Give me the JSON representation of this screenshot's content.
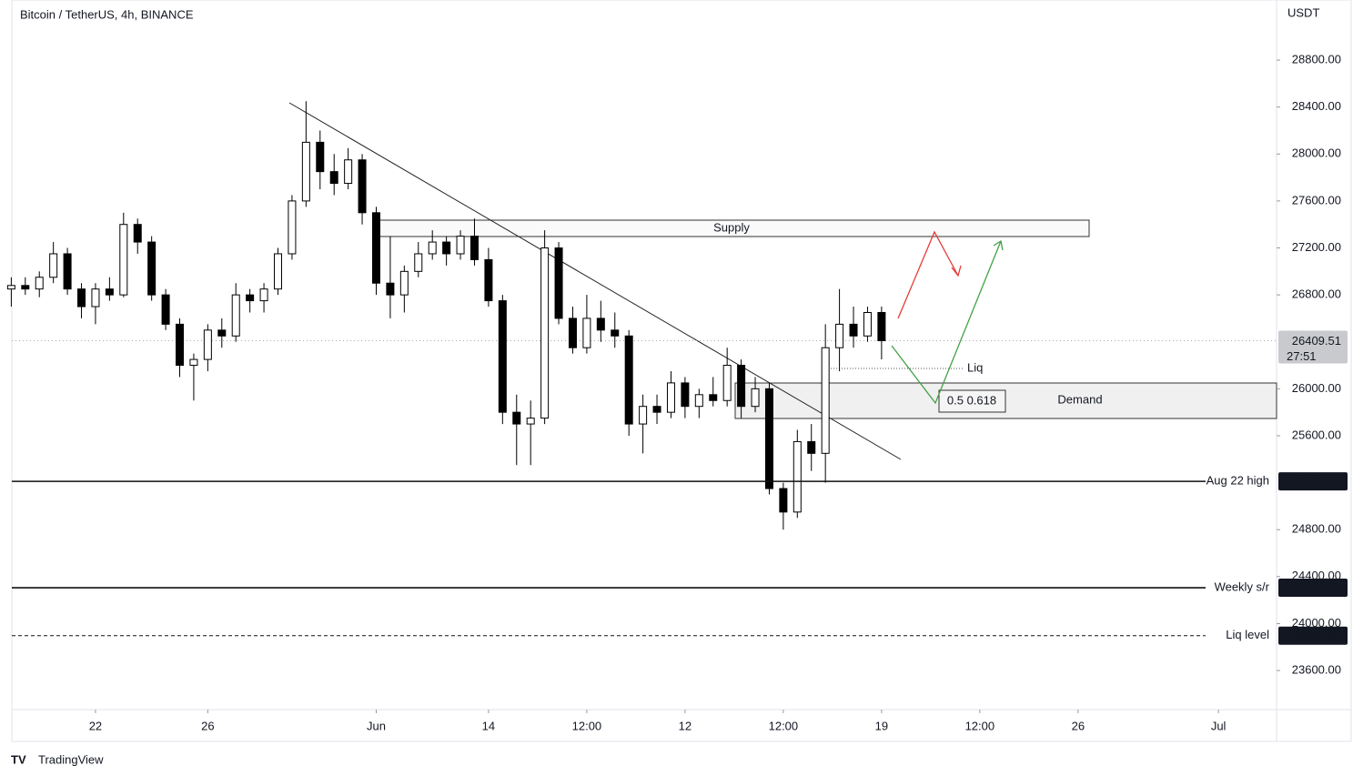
{
  "chart_data": {
    "type": "candlestick",
    "title": "Bitcoin / TetherUS, 4h, BINANCE",
    "y_unit": "USDT",
    "x": [
      -3,
      -2.5,
      -2,
      -1.5,
      -1,
      -0.5,
      0,
      0.5,
      1,
      1.5,
      2,
      2.5,
      3,
      3.5,
      4,
      4.5,
      5,
      5.5,
      6,
      6.5,
      7,
      7.5,
      8,
      8.5,
      9,
      9.5,
      10,
      10.5,
      11,
      11.5,
      12,
      12.5,
      13,
      13.5,
      14,
      14.5,
      15,
      15.5,
      16,
      16.5,
      17,
      17.5,
      18,
      18.5,
      19,
      19.5,
      20,
      20.5,
      21,
      21.5,
      22,
      22.5,
      23,
      23.5,
      24,
      24.5,
      25,
      25.5,
      26,
      26.5,
      27,
      27.5,
      28
    ],
    "open": [
      26850,
      26880,
      26850,
      26950,
      27150,
      26850,
      26700,
      26850,
      26800,
      27400,
      27250,
      26800,
      26550,
      26200,
      26250,
      26500,
      26450,
      26800,
      26750,
      26850,
      27150,
      27600,
      28100,
      27850,
      27750,
      27950,
      27500,
      26900,
      26800,
      27000,
      27150,
      27250,
      27150,
      27300,
      27100,
      26750,
      25800,
      25700,
      25750,
      27200,
      26600,
      26350,
      26600,
      26500,
      26450,
      25700,
      25850,
      25800,
      26050,
      25850,
      25950,
      25900,
      26200,
      25850,
      26000,
      25150,
      24950,
      25550,
      25450,
      26350,
      26550,
      26450,
      26650
    ],
    "high": [
      26950,
      26950,
      27000,
      27250,
      27200,
      26900,
      26900,
      26950,
      27500,
      27450,
      27300,
      26850,
      26600,
      26300,
      26550,
      26600,
      26900,
      26850,
      26900,
      27200,
      27650,
      28450,
      28200,
      28000,
      28050,
      28000,
      27550,
      27300,
      27050,
      27250,
      27350,
      27300,
      27350,
      27450,
      27200,
      26800,
      25950,
      25900,
      27350,
      27250,
      26700,
      26800,
      26750,
      26650,
      26500,
      25950,
      25950,
      26150,
      26100,
      26000,
      26100,
      26350,
      26250,
      26100,
      26050,
      25200,
      25650,
      25700,
      26550,
      26850,
      26700,
      26700,
      26700
    ],
    "low": [
      26700,
      26800,
      26780,
      26900,
      26800,
      26600,
      26550,
      26750,
      26780,
      27150,
      26750,
      26500,
      26100,
      25900,
      26150,
      26350,
      26400,
      26650,
      26650,
      26800,
      27100,
      27550,
      27700,
      27650,
      27700,
      27400,
      26800,
      26600,
      26650,
      26950,
      27100,
      27050,
      27100,
      27050,
      26700,
      25700,
      25350,
      25350,
      25700,
      26550,
      26300,
      26300,
      26400,
      26350,
      25600,
      25450,
      25700,
      25750,
      25750,
      25750,
      25850,
      25850,
      25750,
      25800,
      25100,
      24800,
      24900,
      25300,
      25200,
      26150,
      26350,
      26400,
      26250
    ],
    "close": [
      26880,
      26850,
      26950,
      27150,
      26850,
      26700,
      26850,
      26800,
      27400,
      27250,
      26800,
      26550,
      26200,
      26250,
      26500,
      26450,
      26800,
      26750,
      26850,
      27150,
      27600,
      28100,
      27850,
      27750,
      27950,
      27500,
      26900,
      26800,
      27000,
      27150,
      27250,
      27150,
      27300,
      27100,
      26750,
      25800,
      25700,
      25750,
      27200,
      26600,
      26350,
      26600,
      26500,
      26450,
      25700,
      25850,
      25800,
      26050,
      25850,
      25950,
      25900,
      26200,
      25850,
      26000,
      25150,
      24950,
      25550,
      25450,
      26350,
      26550,
      26450,
      26650,
      26409.51
    ],
    "xlim": [
      -2.98,
      42.07
    ],
    "xticks": [
      {
        "value": 0,
        "label": "22"
      },
      {
        "value": 4,
        "label": "26"
      },
      {
        "value": 10,
        "label": "Jun"
      },
      14,
      {
        "value": 17.5,
        "label": "12:00"
      },
      {
        "value": 21,
        "label": "12"
      },
      {
        "value": 24.5,
        "label": "12:00"
      },
      {
        "value": 28,
        "label": "19"
      },
      {
        "value": 31.5,
        "label": "12:00"
      },
      {
        "value": 35,
        "label": "26"
      },
      {
        "value": 40,
        "label": "Jul"
      }
    ],
    "ylim": [
      23267,
      29312
    ],
    "yticks": [
      {
        "value": 23600,
        "label": "23600.00"
      },
      {
        "value": 24000,
        "label": "24000.00"
      },
      {
        "value": 24400,
        "label": "24400.00"
      },
      {
        "value": 24800,
        "label": "24800.00"
      },
      {
        "value": 25600,
        "label": "25600.00"
      },
      {
        "value": 26000,
        "label": "26000.00"
      },
      {
        "value": 26800,
        "label": "26800.00"
      },
      {
        "value": 27200,
        "label": "27200.00"
      },
      {
        "value": 27600,
        "label": "27600.00"
      },
      {
        "value": 28000,
        "label": "28000.00"
      },
      {
        "value": 28400,
        "label": "28400.00"
      },
      {
        "value": 28800,
        "label": "28800.00"
      }
    ],
    "levels": [
      {
        "name": "Aug 22 high",
        "value": 25211.32,
        "dashed": false
      },
      {
        "name": "Weekly s/r",
        "value": 24305.24,
        "dashed": false
      },
      {
        "name": "Liq level",
        "value": 23896.95,
        "dashed": true
      }
    ],
    "last_price": {
      "value": 26409.51,
      "countdown": "27:51"
    },
    "annotations": {
      "supply": "Supply",
      "demand": "Demand",
      "liq": "Liq",
      "fib": "0.5 0.618"
    },
    "footer": "TradingView"
  }
}
